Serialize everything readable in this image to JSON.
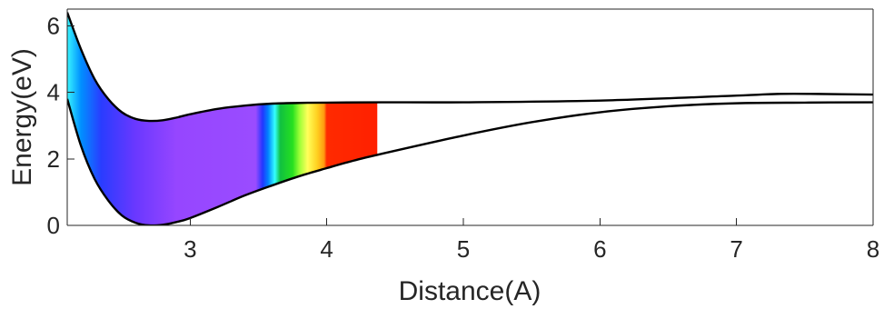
{
  "chart_data": {
    "type": "line",
    "title": "",
    "xlabel": "Distance(A)",
    "ylabel": "Energy(eV)",
    "xlim": [
      2.1,
      8.0
    ],
    "ylim": [
      0,
      6.5
    ],
    "xticks": [
      {
        "value": 3,
        "label": "3"
      },
      {
        "value": 4,
        "label": "4"
      },
      {
        "value": 5,
        "label": "5"
      },
      {
        "value": 6,
        "label": "6"
      },
      {
        "value": 7,
        "label": "7"
      },
      {
        "value": 8,
        "label": "8"
      }
    ],
    "yticks": [
      {
        "value": 0,
        "label": "0"
      },
      {
        "value": 2,
        "label": "2"
      },
      {
        "value": 4,
        "label": "4"
      },
      {
        "value": 6,
        "label": "6"
      }
    ],
    "grid": false,
    "series": [
      {
        "x": [
          2.1,
          2.2,
          2.3,
          2.4,
          2.5,
          2.6,
          2.7,
          2.8,
          2.9,
          3.0,
          3.2,
          3.4,
          3.6,
          3.8,
          4.0,
          4.4,
          5.0,
          6.0,
          7.0,
          7.3,
          7.6,
          8.0
        ],
        "values": [
          6.4,
          5.3,
          4.4,
          3.8,
          3.4,
          3.2,
          3.14,
          3.16,
          3.24,
          3.34,
          3.5,
          3.6,
          3.66,
          3.68,
          3.69,
          3.7,
          3.7,
          3.75,
          3.9,
          3.95,
          3.95,
          3.93
        ]
      },
      {
        "x": [
          2.1,
          2.2,
          2.3,
          2.4,
          2.5,
          2.6,
          2.7,
          2.8,
          2.9,
          3.0,
          3.2,
          3.4,
          3.6,
          3.8,
          4.0,
          4.2,
          4.4,
          5.0,
          5.5,
          6.0,
          6.5,
          7.0,
          7.5,
          8.0
        ],
        "values": [
          3.8,
          2.4,
          1.4,
          0.75,
          0.3,
          0.08,
          0.0,
          0.02,
          0.1,
          0.22,
          0.55,
          0.9,
          1.2,
          1.48,
          1.72,
          1.95,
          2.15,
          2.7,
          3.1,
          3.4,
          3.58,
          3.67,
          3.69,
          3.7
        ]
      }
    ],
    "filled_band": {
      "x_range": [
        2.1,
        4.37
      ],
      "gradient_stops": [
        {
          "x": 2.1,
          "color": "#38f4ff"
        },
        {
          "x": 2.2,
          "color": "#0090ff"
        },
        {
          "x": 2.35,
          "color": "#2a3cff"
        },
        {
          "x": 2.6,
          "color": "#6a38ff"
        },
        {
          "x": 2.9,
          "color": "#9646ff"
        },
        {
          "x": 3.48,
          "color": "#9a4cff"
        },
        {
          "x": 3.53,
          "color": "#2236ff"
        },
        {
          "x": 3.57,
          "color": "#0080ff"
        },
        {
          "x": 3.62,
          "color": "#35ffff"
        },
        {
          "x": 3.66,
          "color": "#10c040"
        },
        {
          "x": 3.75,
          "color": "#26e020"
        },
        {
          "x": 3.8,
          "color": "#9aff36"
        },
        {
          "x": 3.86,
          "color": "#ffff5a"
        },
        {
          "x": 3.93,
          "color": "#ffd020"
        },
        {
          "x": 3.98,
          "color": "#ff9a10"
        },
        {
          "x": 4.0,
          "color": "#ff2a00"
        },
        {
          "x": 4.37,
          "color": "#ff2000"
        }
      ]
    }
  }
}
